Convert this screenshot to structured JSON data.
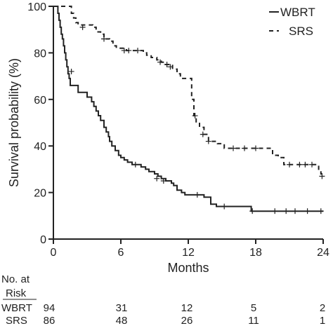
{
  "chart_data": {
    "type": "line",
    "subtype": "kaplan-meier",
    "title": "",
    "xlabel": "Months",
    "ylabel": "Survival probability (%)",
    "xlim": [
      0,
      24
    ],
    "ylim": [
      0,
      100
    ],
    "xticks": [
      0,
      6,
      12,
      18,
      24
    ],
    "yticks": [
      0,
      20,
      40,
      60,
      80,
      100
    ],
    "grid": false,
    "legend_position": "top-right",
    "series": [
      {
        "name": "WBRT",
        "style": "solid",
        "steps": [
          [
            0,
            100
          ],
          [
            0.4,
            97
          ],
          [
            0.5,
            94
          ],
          [
            0.6,
            91
          ],
          [
            0.7,
            88
          ],
          [
            0.8,
            86
          ],
          [
            0.9,
            83
          ],
          [
            1.0,
            80
          ],
          [
            1.1,
            77
          ],
          [
            1.2,
            74
          ],
          [
            1.3,
            71
          ],
          [
            1.4,
            69
          ],
          [
            1.5,
            66
          ],
          [
            2.0,
            66
          ],
          [
            2.2,
            63
          ],
          [
            2.8,
            63
          ],
          [
            3.0,
            61
          ],
          [
            3.4,
            59
          ],
          [
            3.6,
            57
          ],
          [
            3.8,
            55
          ],
          [
            4.0,
            53
          ],
          [
            4.2,
            51
          ],
          [
            4.5,
            48
          ],
          [
            4.7,
            46
          ],
          [
            4.9,
            44
          ],
          [
            5.0,
            42
          ],
          [
            5.2,
            40
          ],
          [
            5.5,
            38
          ],
          [
            5.8,
            36
          ],
          [
            6.0,
            35
          ],
          [
            6.3,
            34
          ],
          [
            6.6,
            33
          ],
          [
            7.0,
            32
          ],
          [
            7.6,
            32
          ],
          [
            7.8,
            31
          ],
          [
            8.2,
            30
          ],
          [
            8.5,
            29
          ],
          [
            9.0,
            28
          ],
          [
            9.3,
            27
          ],
          [
            9.6,
            26
          ],
          [
            10.0,
            25
          ],
          [
            10.5,
            24
          ],
          [
            10.7,
            23
          ],
          [
            11.0,
            21
          ],
          [
            11.4,
            20
          ],
          [
            11.7,
            19
          ],
          [
            13.0,
            19
          ],
          [
            13.4,
            18
          ],
          [
            14.0,
            15
          ],
          [
            14.5,
            14
          ],
          [
            15.0,
            14
          ],
          [
            17.6,
            12
          ],
          [
            24.0,
            12
          ]
        ],
        "censored": [
          [
            1.6,
            72
          ],
          [
            7.3,
            32
          ],
          [
            9.2,
            26
          ],
          [
            9.8,
            25
          ],
          [
            12.8,
            19
          ],
          [
            15.2,
            14
          ],
          [
            17.7,
            12
          ],
          [
            19.7,
            12
          ],
          [
            20.7,
            12
          ],
          [
            21.5,
            12
          ],
          [
            22.6,
            12
          ],
          [
            23.8,
            12
          ]
        ]
      },
      {
        "name": "SRS",
        "style": "dashed",
        "steps": [
          [
            0,
            100
          ],
          [
            1.5,
            100
          ],
          [
            1.6,
            97
          ],
          [
            1.8,
            95
          ],
          [
            2.0,
            93
          ],
          [
            2.2,
            92
          ],
          [
            3.5,
            91
          ],
          [
            3.8,
            89
          ],
          [
            4.2,
            88
          ],
          [
            4.5,
            86
          ],
          [
            5.0,
            85
          ],
          [
            5.3,
            83
          ],
          [
            5.6,
            82
          ],
          [
            6.5,
            81
          ],
          [
            7.2,
            81
          ],
          [
            8.0,
            80
          ],
          [
            8.3,
            79
          ],
          [
            8.7,
            78
          ],
          [
            9.2,
            77
          ],
          [
            9.6,
            76
          ],
          [
            10.0,
            75
          ],
          [
            10.6,
            73
          ],
          [
            11.0,
            71
          ],
          [
            11.3,
            69
          ],
          [
            12.0,
            69
          ],
          [
            12.3,
            60
          ],
          [
            12.5,
            53
          ],
          [
            12.7,
            50
          ],
          [
            13.0,
            48
          ],
          [
            13.4,
            45
          ],
          [
            13.8,
            42
          ],
          [
            14.6,
            41
          ],
          [
            15.2,
            39
          ],
          [
            16.0,
            39
          ],
          [
            18.5,
            39
          ],
          [
            19.5,
            36
          ],
          [
            20.0,
            35
          ],
          [
            20.5,
            32
          ],
          [
            23.3,
            32
          ],
          [
            23.6,
            30
          ],
          [
            23.8,
            28
          ],
          [
            24.0,
            27
          ]
        ],
        "censored": [
          [
            2.6,
            91
          ],
          [
            4.5,
            86
          ],
          [
            6.3,
            81
          ],
          [
            6.7,
            81
          ],
          [
            7.5,
            81
          ],
          [
            9.5,
            76
          ],
          [
            10.1,
            75
          ],
          [
            10.4,
            74
          ],
          [
            12.6,
            53
          ],
          [
            13.3,
            45
          ],
          [
            13.8,
            42
          ],
          [
            16.0,
            39
          ],
          [
            17.0,
            39
          ],
          [
            18.0,
            39
          ],
          [
            21.0,
            32
          ],
          [
            21.9,
            32
          ],
          [
            22.4,
            32
          ],
          [
            23.0,
            32
          ],
          [
            23.9,
            27
          ]
        ]
      }
    ],
    "risk_table": {
      "header_line1": "No. at",
      "header_line2": "Risk",
      "timepoints": [
        0,
        6,
        12,
        18,
        24
      ],
      "rows": [
        {
          "label": "WBRT",
          "values": [
            "94",
            "31",
            "12",
            "5",
            "2"
          ]
        },
        {
          "label": "SRS",
          "values": [
            "86",
            "48",
            "26",
            "11",
            "1"
          ]
        }
      ]
    }
  }
}
